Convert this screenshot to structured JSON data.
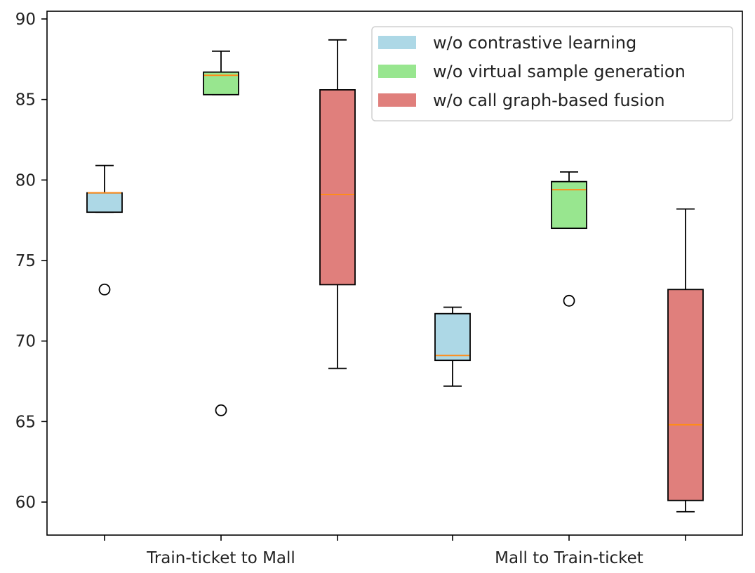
{
  "chart_data": {
    "type": "box",
    "title": "",
    "xlabel": "",
    "ylabel": "",
    "ylim": [
      58,
      90
    ],
    "yticks": [
      60,
      65,
      70,
      75,
      80,
      85,
      90
    ],
    "y_tick_labels": [
      "60",
      "65",
      "70",
      "75",
      "80",
      "85",
      "90"
    ],
    "categories": [
      "Train-ticket to Mall",
      "Mall to Train-ticket"
    ],
    "grid": false,
    "legend_position": "top-right",
    "series": [
      {
        "name": "w/o contrastive learning",
        "color": "#add8e6",
        "boxes": [
          {
            "whisker_low": 78.0,
            "q1": 78.0,
            "median": 79.2,
            "q3": 79.2,
            "whisker_high": 80.9,
            "outliers": [
              73.2
            ]
          },
          {
            "whisker_low": 67.2,
            "q1": 68.8,
            "median": 69.1,
            "q3": 71.7,
            "whisker_high": 72.1,
            "outliers": []
          }
        ]
      },
      {
        "name": "w/o virtual sample generation",
        "color": "#98e68f",
        "boxes": [
          {
            "whisker_low": 85.3,
            "q1": 85.3,
            "median": 86.5,
            "q3": 86.7,
            "whisker_high": 88.0,
            "outliers": [
              65.7
            ]
          },
          {
            "whisker_low": 77.0,
            "q1": 77.0,
            "median": 79.4,
            "q3": 79.9,
            "whisker_high": 80.5,
            "outliers": [
              72.5
            ]
          }
        ]
      },
      {
        "name": "w/o call graph-based fusion",
        "color": "#e07f7c",
        "boxes": [
          {
            "whisker_low": 68.3,
            "q1": 73.5,
            "median": 79.1,
            "q3": 85.6,
            "whisker_high": 88.7,
            "outliers": []
          },
          {
            "whisker_low": 59.4,
            "q1": 60.1,
            "median": 64.8,
            "q3": 73.2,
            "whisker_high": 78.2,
            "outliers": []
          }
        ]
      }
    ],
    "median_color": "#ff8c1a"
  }
}
